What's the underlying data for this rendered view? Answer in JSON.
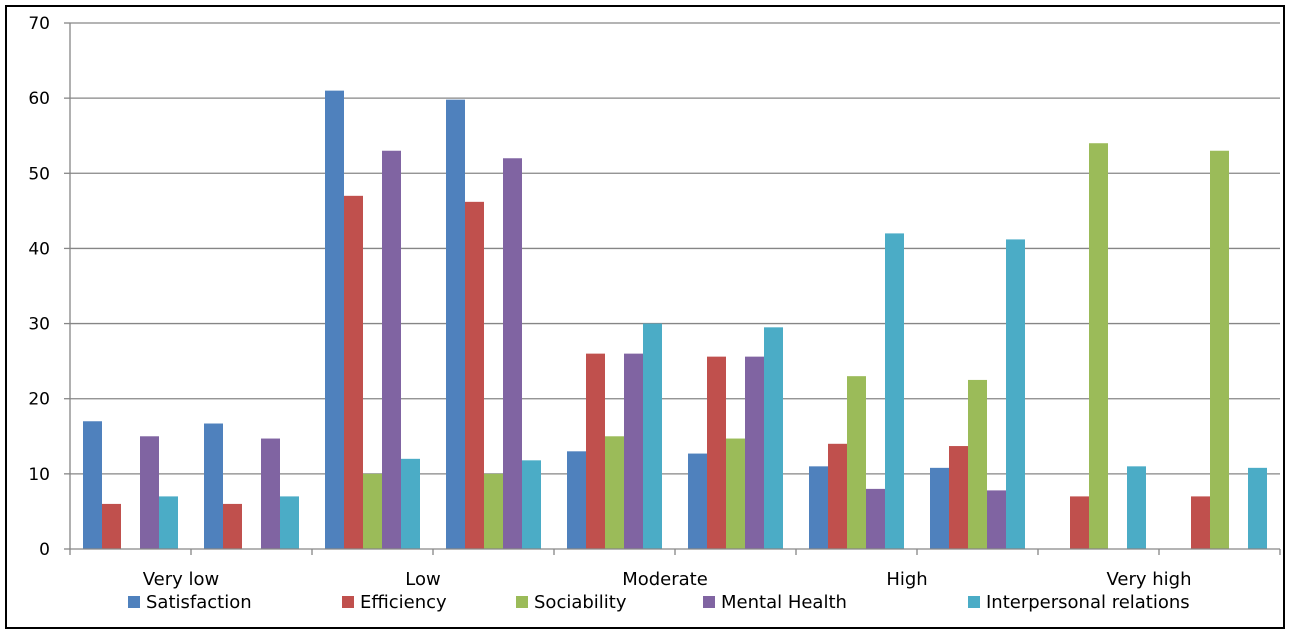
{
  "chart_data": {
    "type": "bar",
    "title": "",
    "xlabel": "",
    "ylabel": "",
    "ylim": [
      0,
      70
    ],
    "yticks": [
      0,
      10,
      20,
      30,
      40,
      50,
      60,
      70
    ],
    "grid": true,
    "legend": "bottom",
    "category_labels": [
      {
        "label": "Very low",
        "group_position": 1
      },
      {
        "label": "Low",
        "group_position": 3
      },
      {
        "label": "Moderate",
        "group_position": 5
      },
      {
        "label": "High",
        "group_position": 7
      },
      {
        "label": "Very high",
        "group_position": 9
      }
    ],
    "group_count": 10,
    "series": [
      {
        "name": "Satisfaction",
        "color": "#4F81BD",
        "values": [
          17,
          16.7,
          61,
          59.8,
          13,
          12.7,
          11,
          10.8,
          0,
          0
        ]
      },
      {
        "name": "Efficiency",
        "color": "#C0504D",
        "values": [
          6,
          6,
          47,
          46.2,
          26,
          25.6,
          14,
          13.7,
          7,
          7
        ]
      },
      {
        "name": "Sociability",
        "color": "#9BBB59",
        "values": [
          0,
          0,
          10,
          10,
          15,
          14.7,
          23,
          22.5,
          54,
          53
        ]
      },
      {
        "name": "Mental Health",
        "color": "#8064A2",
        "values": [
          15,
          14.7,
          53,
          52,
          26,
          25.6,
          8,
          7.8,
          0,
          0
        ]
      },
      {
        "name": "Interpersonal relations",
        "color": "#4BACC6",
        "values": [
          7,
          7,
          12,
          11.8,
          30,
          29.5,
          42,
          41.2,
          11,
          10.8
        ]
      }
    ]
  }
}
